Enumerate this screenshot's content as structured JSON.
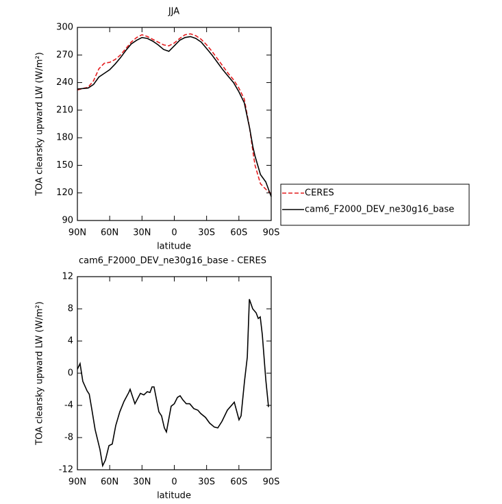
{
  "chart_data": [
    {
      "type": "line",
      "title": "JJA",
      "xlabel": "latitude",
      "ylabel": "TOA clearsky upward LW (W/m²)",
      "x": [
        90,
        80,
        75,
        70,
        65,
        60,
        55,
        50,
        45,
        40,
        35,
        30,
        25,
        20,
        15,
        10,
        5,
        0,
        -5,
        -10,
        -15,
        -20,
        -25,
        -30,
        -35,
        -40,
        -45,
        -50,
        -55,
        -60,
        -65,
        -70,
        -73,
        -75,
        -80,
        -85,
        -90
      ],
      "series": [
        {
          "name": "CERES",
          "color": "#e41a1c",
          "dash": true,
          "values": [
            232,
            235,
            242,
            255,
            261,
            262,
            265,
            270,
            277,
            284,
            289,
            292,
            290,
            287,
            284,
            281,
            280,
            283,
            288,
            292,
            293,
            291,
            287,
            281,
            274,
            266,
            258,
            250,
            243,
            234,
            222,
            190,
            165,
            150,
            130,
            124,
            119
          ]
        },
        {
          "name": "cam6_F2000_DEV_ne30g16_base",
          "color": "#000000",
          "dash": false,
          "values": [
            233,
            234,
            238,
            246,
            250,
            254,
            260,
            267,
            275,
            282,
            286,
            289,
            288,
            285,
            281,
            276,
            274,
            280,
            286,
            289,
            290,
            288,
            284,
            277,
            270,
            262,
            254,
            247,
            240,
            230,
            218,
            190,
            170,
            160,
            140,
            132,
            116
          ]
        }
      ],
      "xlim": [
        90,
        -90
      ],
      "ylim": [
        90,
        300
      ],
      "xticks": [
        {
          "value": 90,
          "label": "90N"
        },
        {
          "value": 60,
          "label": "60N"
        },
        {
          "value": 30,
          "label": "30N"
        },
        0,
        {
          "value": -30,
          "label": "30S"
        },
        {
          "value": -60,
          "label": "60S"
        },
        {
          "value": -90,
          "label": "90S"
        }
      ],
      "yticks": [
        90,
        120,
        150,
        180,
        210,
        240,
        270,
        300
      ],
      "legend": "outside right"
    },
    {
      "type": "line",
      "title": "cam6_F2000_DEV_ne30g16_base - CERES",
      "xlabel": "latitude",
      "ylabel": "TOA clearsky upward LW (W/m²)",
      "x": [
        90,
        87.5,
        85,
        81,
        79,
        76.6,
        73.5,
        69,
        66.5,
        64,
        60.7,
        57.6,
        54.4,
        50.6,
        46.7,
        42.3,
        41,
        36.6,
        31.5,
        28.3,
        25.1,
        22.6,
        20.7,
        18.8,
        14.3,
        11.8,
        9.2,
        7.3,
        2.9,
        0,
        -2.9,
        -5.4,
        -7.9,
        -11.1,
        -14.3,
        -18.1,
        -21.9,
        -24.5,
        -29,
        -32.8,
        -37.2,
        -40.4,
        -44.2,
        -49.3,
        -55.7,
        -60.1,
        -62,
        -65.2,
        -67.8,
        -69.7,
        -72.8,
        -76,
        -78,
        -79.8,
        -81.7,
        -85,
        -87.5
      ],
      "values": [
        0.5,
        1.2,
        -1,
        -2.2,
        -2.6,
        -4.5,
        -7,
        -9.5,
        -11.5,
        -10.8,
        -9,
        -8.8,
        -6.5,
        -4.8,
        -3.5,
        -2.4,
        -2,
        -3.8,
        -2.5,
        -2.7,
        -2.3,
        -2.4,
        -1.7,
        -1.7,
        -4.8,
        -5.3,
        -6.8,
        -7.3,
        -4.1,
        -3.8,
        -3,
        -2.8,
        -3.3,
        -3.8,
        -3.8,
        -4.4,
        -4.6,
        -5,
        -5.5,
        -6.2,
        -6.7,
        -6.8,
        -6,
        -4.6,
        -3.6,
        -5.8,
        -5.3,
        -1,
        2,
        9.2,
        8,
        7.5,
        6.8,
        7,
        4.8,
        -0.8,
        -4.2
      ],
      "color": "#000000",
      "xlim": [
        90,
        -90
      ],
      "ylim": [
        -12,
        12
      ],
      "xticks": [
        {
          "value": 90,
          "label": "90N"
        },
        {
          "value": 60,
          "label": "60N"
        },
        {
          "value": 30,
          "label": "30N"
        },
        0,
        {
          "value": -30,
          "label": "30S"
        },
        {
          "value": -60,
          "label": "60S"
        },
        {
          "value": -90,
          "label": "90S"
        }
      ],
      "yticks": [
        -12,
        -8,
        -4,
        0,
        4,
        8,
        12
      ]
    }
  ]
}
